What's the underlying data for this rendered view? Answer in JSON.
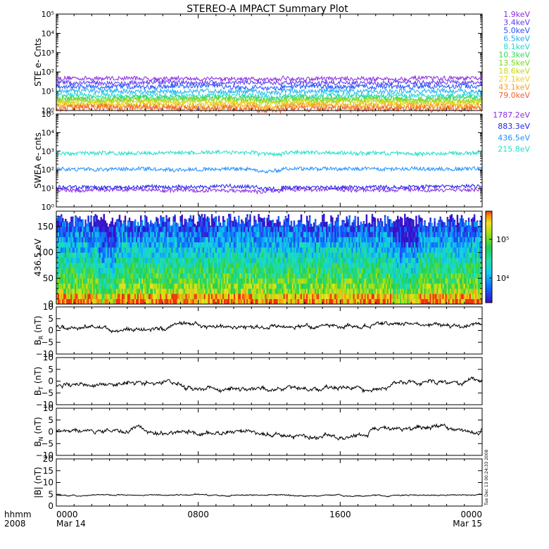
{
  "title": "STEREO-A IMPACT Summary Plot",
  "colors": {
    "ste": [
      "#8a2be2",
      "#5a3cf0",
      "#2255ff",
      "#1fb0ee",
      "#20d8d0",
      "#3ad65a",
      "#7cd61e",
      "#c8d61e",
      "#f0d020",
      "#f5a020",
      "#f06030"
    ],
    "swea": [
      "#8a2be2",
      "#2222ee",
      "#1e90ff",
      "#20e0c8"
    ]
  },
  "timestamp": "Tue Dec 13 00:24:33 2008",
  "chart_data": [
    {
      "type": "line",
      "name": "ste",
      "ylabel": "STE e- Cnts",
      "yscale": "log",
      "ylim": [
        1,
        100000
      ],
      "yticks": [
        "10⁰",
        "10¹",
        "10²",
        "10³",
        "10⁴",
        "10⁵"
      ],
      "series": [
        {
          "name": "1.9keV",
          "level": 45
        },
        {
          "name": "3.4keV",
          "level": 28
        },
        {
          "name": "5.0keV",
          "level": 17
        },
        {
          "name": "6.5keV",
          "level": 10
        },
        {
          "name": "8.1keV",
          "level": 6
        },
        {
          "name": "10.3keV",
          "level": 4.5
        },
        {
          "name": "13.5keV",
          "level": 3.5
        },
        {
          "name": "18.6keV",
          "level": 2.8
        },
        {
          "name": "27.1keV",
          "level": 2.2
        },
        {
          "name": "43.1keV",
          "level": 1.7
        },
        {
          "name": "79.0keV",
          "level": 1.3
        }
      ]
    },
    {
      "type": "line",
      "name": "swea",
      "ylabel": "SWEA e- cnts",
      "yscale": "log",
      "ylim": [
        1,
        100000
      ],
      "yticks": [
        "10⁰",
        "10¹",
        "10²",
        "10³",
        "10⁴",
        "10⁵"
      ],
      "series": [
        {
          "name": "1787.2eV",
          "level": 8
        },
        {
          "name": "883.3eV",
          "level": 12
        },
        {
          "name": "436.5eV",
          "level": 110
        },
        {
          "name": "215.8eV",
          "level": 800
        }
      ]
    },
    {
      "type": "heatmap",
      "name": "pad",
      "ylabel": "436.5 eV",
      "ylim": [
        0,
        180
      ],
      "yticks": [
        "0",
        "50",
        "100",
        "150"
      ],
      "colorbar_ticks": [
        "10⁴",
        "10⁵"
      ]
    },
    {
      "type": "line",
      "name": "br",
      "ylabel": "B",
      "ylabel_sub": "R",
      "ylabel_unit": "(nT)",
      "ylim": [
        -10,
        10
      ],
      "yticks": [
        "−10",
        "−5",
        "0",
        "5",
        "10"
      ],
      "mean": 1.5
    },
    {
      "type": "line",
      "name": "bt",
      "ylabel": "B",
      "ylabel_sub": "T",
      "ylabel_unit": "(nT)",
      "ylim": [
        -10,
        10
      ],
      "yticks": [
        "−10",
        "−5",
        "0",
        "5",
        "10"
      ],
      "mean": -1.5
    },
    {
      "type": "line",
      "name": "bn",
      "ylabel": "B",
      "ylabel_sub": "N",
      "ylabel_unit": "(nT)",
      "ylim": [
        -10,
        10
      ],
      "yticks": [
        "−10",
        "−5",
        "0",
        "5",
        "10"
      ],
      "mean": 0.5
    },
    {
      "type": "line",
      "name": "bmag",
      "ylabel": "|B| (nT)",
      "ylim": [
        0,
        20
      ],
      "yticks": [
        "0",
        "5",
        "10",
        "15",
        "20"
      ],
      "mean": 4.5
    }
  ],
  "xaxis": {
    "left_labels": [
      "hhmm",
      "2008"
    ],
    "ticks": [
      {
        "time": "0000",
        "date": "Mar 14",
        "frac": 0
      },
      {
        "time": "0800",
        "date": "",
        "frac": 0.3333
      },
      {
        "time": "1600",
        "date": "",
        "frac": 0.6667
      },
      {
        "time": "0000",
        "date": "Mar 15",
        "frac": 1
      }
    ]
  }
}
